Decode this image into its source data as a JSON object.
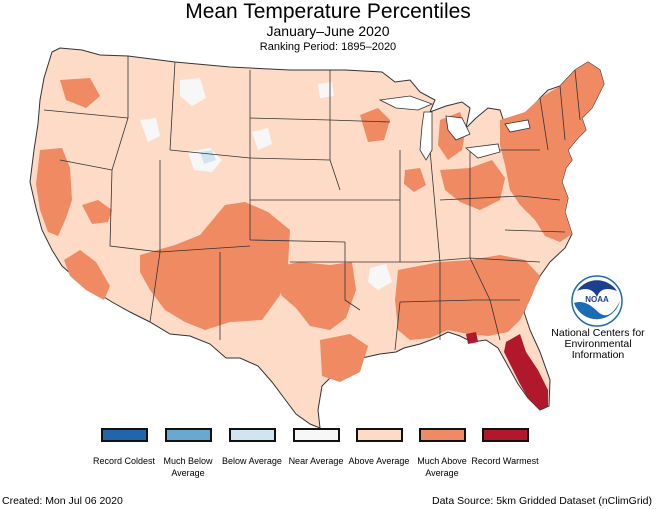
{
  "header": {
    "title": "Mean Temperature Percentiles",
    "subtitle": "January–June 2020",
    "period": "Ranking Period: 1895–2020"
  },
  "colors": {
    "record_coldest": "#2166ac",
    "much_below": "#67a9cf",
    "below": "#d1e5f0",
    "near": "#f7f7f7",
    "above": "#fddbc7",
    "much_above": "#ef8a62",
    "record_warmest": "#b2182b",
    "state_border": "#333333"
  },
  "legend": {
    "items": [
      {
        "label": "Record Coldest",
        "color": "#2166ac"
      },
      {
        "label": "Much Below Average",
        "color": "#67a9cf"
      },
      {
        "label": "Below Average",
        "color": "#d1e5f0"
      },
      {
        "label": "Near Average",
        "color": "#f7f7f7"
      },
      {
        "label": "Above Average",
        "color": "#fddbc7"
      },
      {
        "label": "Much Above Average",
        "color": "#ef8a62"
      },
      {
        "label": "Record Warmest",
        "color": "#b2182b"
      }
    ]
  },
  "logo": {
    "icon": "noaa-logo-icon",
    "wordmark": "NOAA",
    "line1": "National Centers for",
    "line2": "Environmental",
    "line3": "Information"
  },
  "footer": {
    "created": "Created: Mon Jul 06 2020",
    "source": "Data Source: 5km Gridded Dataset (nClimGrid)"
  }
}
